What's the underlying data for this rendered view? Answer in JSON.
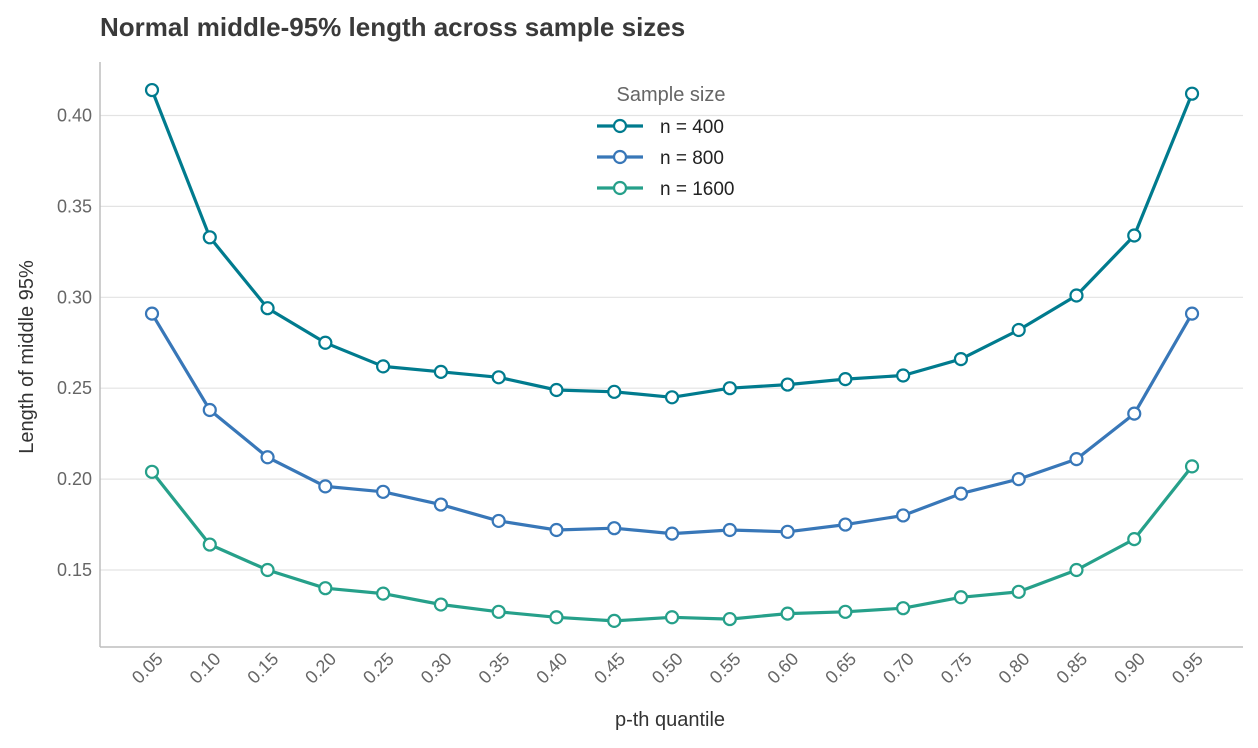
{
  "chart_data": {
    "type": "line",
    "title": "Normal middle-95% length across sample sizes",
    "xlabel": "p-th quantile",
    "ylabel": "Length of middle 95%",
    "categories": [
      "0.05",
      "0.10",
      "0.15",
      "0.20",
      "0.25",
      "0.30",
      "0.35",
      "0.40",
      "0.45",
      "0.50",
      "0.55",
      "0.60",
      "0.65",
      "0.70",
      "0.75",
      "0.80",
      "0.85",
      "0.90",
      "0.95"
    ],
    "yticks": [
      "0.15",
      "0.20",
      "0.25",
      "0.30",
      "0.35",
      "0.40"
    ],
    "ylim": [
      0.109,
      0.429
    ],
    "grid": "horizontal",
    "legend": {
      "title": "Sample size",
      "position": "top-center"
    },
    "series": [
      {
        "name": "n = 400",
        "color": "#007b8e",
        "values": [
          0.414,
          0.333,
          0.294,
          0.275,
          0.262,
          0.259,
          0.256,
          0.249,
          0.248,
          0.245,
          0.25,
          0.252,
          0.255,
          0.257,
          0.266,
          0.282,
          0.301,
          0.334,
          0.412
        ]
      },
      {
        "name": "n = 800",
        "color": "#3877b8",
        "values": [
          0.291,
          0.238,
          0.212,
          0.196,
          0.193,
          0.186,
          0.177,
          0.172,
          0.173,
          0.17,
          0.172,
          0.171,
          0.175,
          0.18,
          0.192,
          0.2,
          0.211,
          0.236,
          0.291
        ]
      },
      {
        "name": "n = 1600",
        "color": "#26a08a",
        "values": [
          0.204,
          0.164,
          0.15,
          0.14,
          0.137,
          0.131,
          0.127,
          0.124,
          0.122,
          0.124,
          0.123,
          0.126,
          0.127,
          0.129,
          0.135,
          0.138,
          0.15,
          0.167,
          0.207
        ]
      }
    ]
  }
}
